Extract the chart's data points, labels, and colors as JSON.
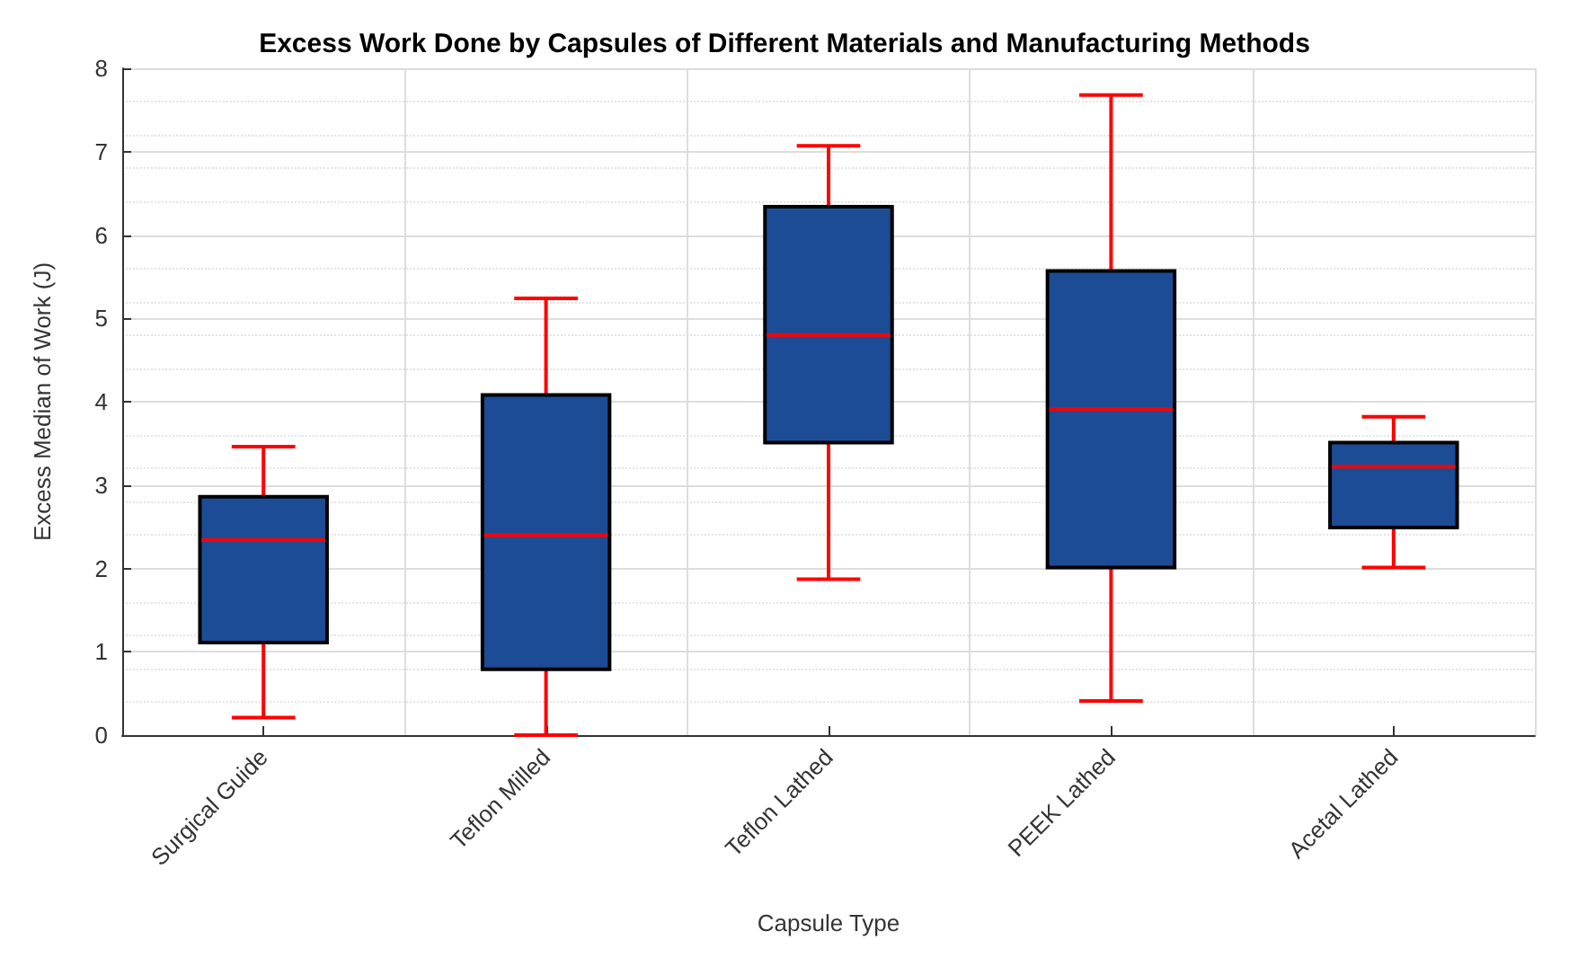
{
  "chart_data": {
    "type": "box",
    "title": "Excess Work Done by Capsules of Different Materials and Manufacturing Methods",
    "xlabel": "Capsule Type",
    "ylabel": "Excess Median of Work (J)",
    "categories": [
      "Surgical Guide",
      "Teflon Milled",
      "Teflon Lathed",
      "PEEK Lathed",
      "Acetal Lathed"
    ],
    "series": [
      {
        "color": "#1c4c96",
        "boxes": [
          {
            "low": 0.21,
            "q1": 1.11,
            "median": 2.34,
            "q3": 2.86,
            "high": 3.46
          },
          {
            "low": 0,
            "q1": 0.79,
            "median": 2.4,
            "q3": 4.08,
            "high": 5.24
          },
          {
            "low": 1.87,
            "q1": 3.51,
            "median": 4.8,
            "q3": 6.34,
            "high": 7.07
          },
          {
            "low": 0.41,
            "q1": 2.01,
            "median": 3.91,
            "q3": 5.57,
            "high": 7.68
          },
          {
            "low": 2.01,
            "q1": 2.49,
            "median": 3.22,
            "q3": 3.51,
            "high": 3.82
          }
        ]
      }
    ],
    "ylim": [
      0,
      8
    ],
    "yticks": [
      0,
      1,
      2,
      3,
      4,
      5,
      6,
      7,
      8
    ],
    "grid": true
  }
}
